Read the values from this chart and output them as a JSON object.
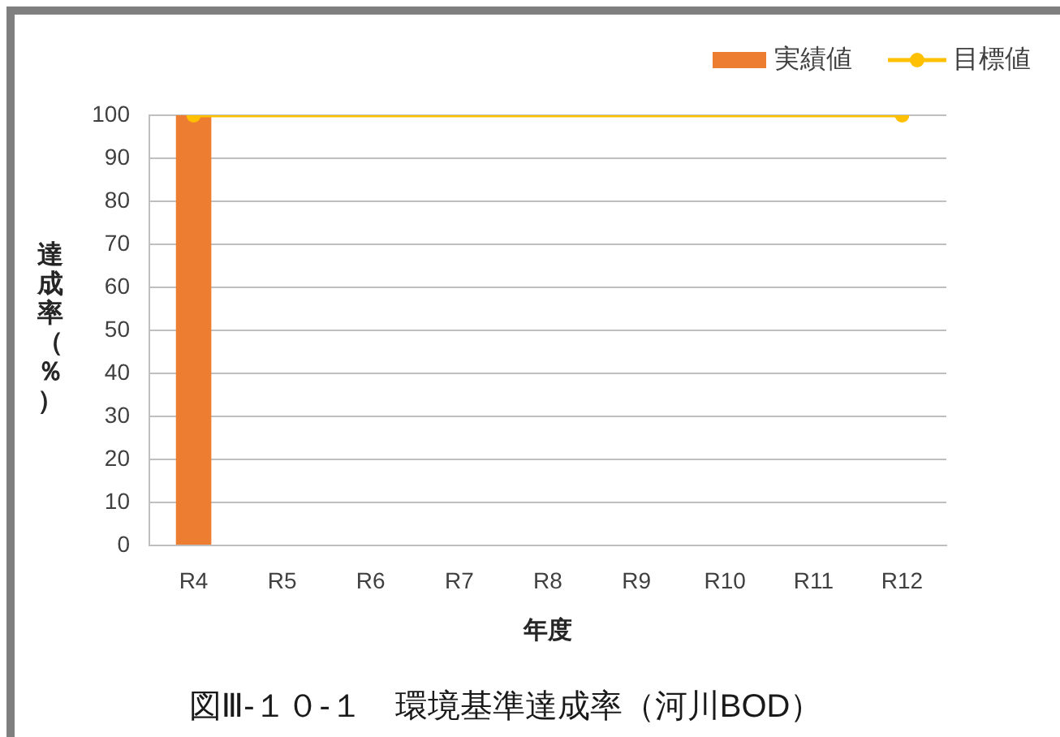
{
  "chart_data": {
    "type": "bar",
    "title": "図Ⅲ-１０-１　環境基準達成率（河川BOD）",
    "xlabel": "年度",
    "ylabel": "達成率（％）",
    "categories": [
      "R4",
      "R5",
      "R6",
      "R7",
      "R8",
      "R9",
      "R10",
      "R11",
      "R12"
    ],
    "series": [
      {
        "name": "実績値",
        "color": "#ed7d31",
        "values": [
          100,
          null,
          null,
          null,
          null,
          null,
          null,
          null,
          null
        ]
      },
      {
        "name": "目標値",
        "type": "line",
        "color": "#ffc000",
        "x": [
          "R4",
          "R12"
        ],
        "values": [
          100,
          100
        ]
      }
    ],
    "ylim": [
      0,
      100
    ],
    "yticks": [
      0,
      10,
      20,
      30,
      40,
      50,
      60,
      70,
      80,
      90,
      100
    ],
    "grid": "y",
    "legend": "top right",
    "marker": "circle"
  }
}
